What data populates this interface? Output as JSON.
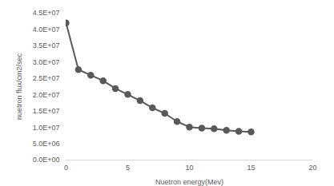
{
  "chart_data": {
    "type": "line",
    "x_label": "Nuetron energy(Mev)",
    "y_label": "nuetron flux/cm2/sec",
    "x": [
      0,
      1,
      2,
      3,
      4,
      5,
      6,
      7,
      8,
      9,
      10,
      11,
      12,
      13,
      14,
      15
    ],
    "values": [
      42000000,
      27700000,
      26000000,
      24300000,
      21900000,
      20100000,
      18200000,
      16000000,
      14300000,
      11800000,
      10100000,
      9800000,
      9600000,
      9100000,
      8800000,
      8600000
    ],
    "color": "#595959",
    "marker": "circle",
    "line_style": "solid",
    "grid": false,
    "xlim": [
      0,
      20
    ],
    "xticks": [
      0,
      5,
      10,
      15,
      20
    ],
    "ylim": [
      0,
      45000000
    ],
    "yticks": [
      {
        "value": 0,
        "label": "0.0E+00"
      },
      {
        "value": 5000000,
        "label": "5.0E+06"
      },
      {
        "value": 10000000,
        "label": "1.0E+07"
      },
      {
        "value": 15000000,
        "label": "1.5E+07"
      },
      {
        "value": 20000000,
        "label": "2.0E+07"
      },
      {
        "value": 25000000,
        "label": "2.5E+07"
      },
      {
        "value": 30000000,
        "label": "3.0E+07"
      },
      {
        "value": 35000000,
        "label": "3.5E+07"
      },
      {
        "value": 40000000,
        "label": "4.0E+07"
      },
      {
        "value": 45000000,
        "label": "4.5E+07"
      }
    ]
  }
}
